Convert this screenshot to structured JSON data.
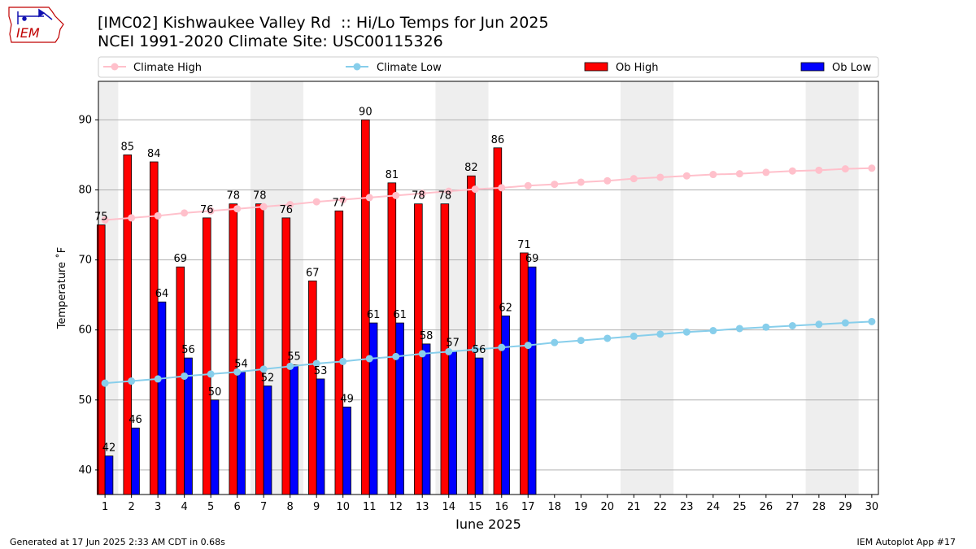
{
  "header": {
    "title_line1": "[IMC02] Kishwaukee Valley Rd  :: Hi/Lo Temps for Jun 2025",
    "title_line2": "NCEI 1991-2020 Climate Site: USC00115326",
    "logo_text": "IEM"
  },
  "footer": {
    "generated": "Generated at 17 Jun 2025 2:33 AM CDT in 0.68s",
    "app": "IEM Autoplot App #17"
  },
  "colors": {
    "ob_high": "#ff0000",
    "ob_low": "#0000ff",
    "climate_high": "#ffc0cb",
    "climate_low": "#87ceeb",
    "weekend_shade": "#eeeeee",
    "grid": "#b0b0b0"
  },
  "chart_data": {
    "type": "bar",
    "xlabel": "June 2025",
    "ylabel": "Temperature ˚F",
    "ylim": [
      36.5,
      95.5
    ],
    "yticks": [
      40,
      50,
      60,
      70,
      80,
      90
    ],
    "grid": "horizontal",
    "legend_position": "top",
    "days": [
      1,
      2,
      3,
      4,
      5,
      6,
      7,
      8,
      9,
      10,
      11,
      12,
      13,
      14,
      15,
      16,
      17,
      18,
      19,
      20,
      21,
      22,
      23,
      24,
      25,
      26,
      27,
      28,
      29,
      30
    ],
    "shaded_days": [
      [
        1,
        1
      ],
      [
        7,
        8
      ],
      [
        14,
        15
      ],
      [
        21,
        22
      ],
      [
        28,
        29
      ]
    ],
    "series": [
      {
        "name": "Climate High",
        "kind": "line",
        "values": [
          75.7,
          76.0,
          76.3,
          76.7,
          77.0,
          77.3,
          77.6,
          77.9,
          78.3,
          78.6,
          78.9,
          79.2,
          79.5,
          79.8,
          80.1,
          80.3,
          80.6,
          80.8,
          81.1,
          81.3,
          81.6,
          81.8,
          82.0,
          82.2,
          82.3,
          82.5,
          82.7,
          82.8,
          83.0,
          83.1
        ]
      },
      {
        "name": "Climate Low",
        "kind": "line",
        "values": [
          52.4,
          52.7,
          53.0,
          53.4,
          53.7,
          54.0,
          54.4,
          54.8,
          55.2,
          55.5,
          55.9,
          56.2,
          56.6,
          56.9,
          57.2,
          57.5,
          57.8,
          58.2,
          58.5,
          58.8,
          59.1,
          59.4,
          59.7,
          59.9,
          60.2,
          60.4,
          60.6,
          60.8,
          61.0,
          61.2
        ]
      },
      {
        "name": "Ob High",
        "kind": "bar",
        "values": [
          75,
          85,
          84,
          69,
          76,
          78,
          78,
          76,
          67,
          77,
          90,
          81,
          78,
          78,
          82,
          86,
          71
        ]
      },
      {
        "name": "Ob Low",
        "kind": "bar",
        "values": [
          42,
          46,
          64,
          56,
          50,
          54,
          52,
          55,
          53,
          49,
          61,
          61,
          58,
          57,
          56,
          62,
          69
        ]
      }
    ]
  }
}
